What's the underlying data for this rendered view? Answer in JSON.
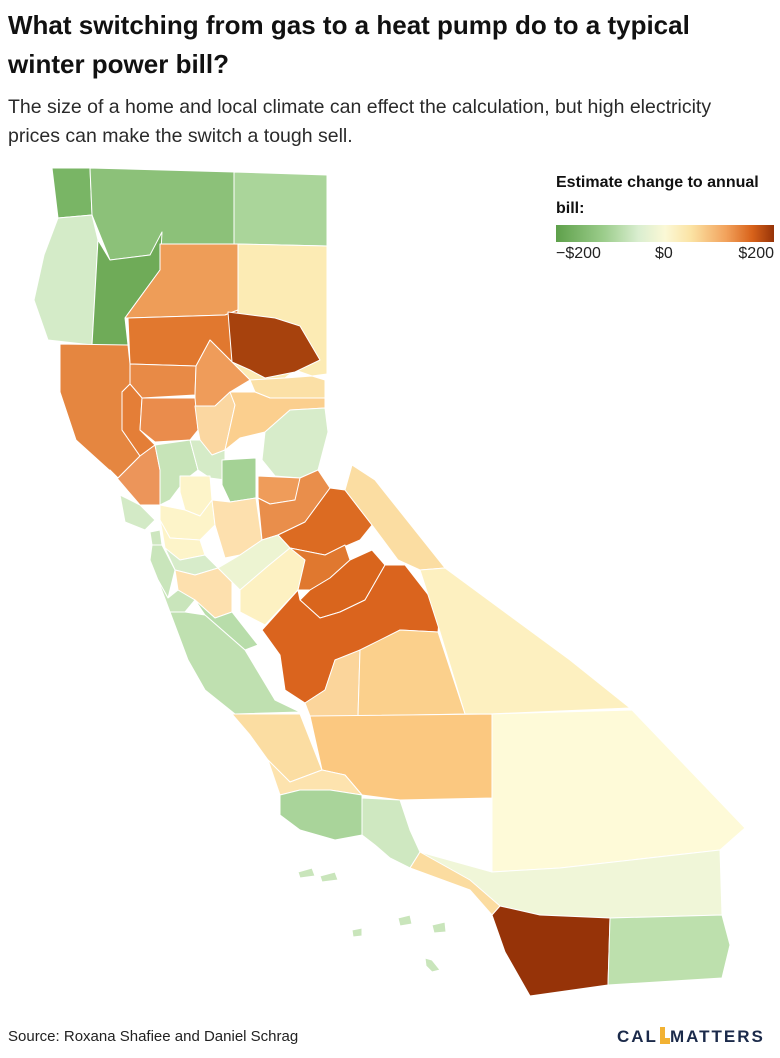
{
  "title": "What switching from gas to a heat pump do to a typical winter power bill?",
  "subtitle": "The size of a home and local climate can effect the calculation, but high electricity prices can make the switch a tough sell.",
  "legend": {
    "title": "Estimate change to annual bill:",
    "tick_min": "−$200",
    "tick_mid": "$0",
    "tick_max": "$200",
    "color_stops": [
      "#5ea04a",
      "#9ccd8c",
      "#daeed0",
      "#fbf8d6",
      "#fbe3a4",
      "#f2a25c",
      "#d8621a",
      "#963308"
    ]
  },
  "map": {
    "regions": [
      {
        "id": "del-norte",
        "color": "#79b565"
      },
      {
        "id": "siskiyou",
        "color": "#8cc179"
      },
      {
        "id": "modoc",
        "color": "#aad59a"
      },
      {
        "id": "humboldt",
        "color": "#d4ebc8"
      },
      {
        "id": "trinity",
        "color": "#6fab58"
      },
      {
        "id": "shasta",
        "color": "#ee9d58"
      },
      {
        "id": "lassen",
        "color": "#fcebb4"
      },
      {
        "id": "tehama",
        "color": "#e1782f"
      },
      {
        "id": "plumas",
        "color": "#a7420d"
      },
      {
        "id": "mendocino",
        "color": "#e58640"
      },
      {
        "id": "glenn",
        "color": "#e88a46"
      },
      {
        "id": "butte",
        "color": "#ef9c5a"
      },
      {
        "id": "sierra",
        "color": "#fbe0a6"
      },
      {
        "id": "lake",
        "color": "#e47e37"
      },
      {
        "id": "colusa",
        "color": "#ea8c4c"
      },
      {
        "id": "sutter-yuba",
        "color": "#fbd7a1"
      },
      {
        "id": "nevada-placer",
        "color": "#fbcf8e"
      },
      {
        "id": "el-dorado",
        "color": "#d7ecca"
      },
      {
        "id": "sonoma",
        "color": "#ec955a"
      },
      {
        "id": "napa",
        "color": "#c7e4b8"
      },
      {
        "id": "yolo",
        "color": "#d5ebc7"
      },
      {
        "id": "sacramento",
        "color": "#fdf4c9"
      },
      {
        "id": "amador",
        "color": "#a4d295"
      },
      {
        "id": "alpine",
        "color": "#ef9c5a"
      },
      {
        "id": "marin",
        "color": "#d3eac6"
      },
      {
        "id": "solano",
        "color": "#fdf4c9"
      },
      {
        "id": "san-joaquin",
        "color": "#fde0ae"
      },
      {
        "id": "calaveras",
        "color": "#e98e4b"
      },
      {
        "id": "tuolumne",
        "color": "#dc6b22"
      },
      {
        "id": "mono",
        "color": "#fbdda2"
      },
      {
        "id": "san-francisco",
        "color": "#cde6bf"
      },
      {
        "id": "contra-costa",
        "color": "#fdf4c9"
      },
      {
        "id": "alameda",
        "color": "#d7ecca"
      },
      {
        "id": "san-mateo",
        "color": "#c9e5bb"
      },
      {
        "id": "santa-clara",
        "color": "#fde0ae"
      },
      {
        "id": "stanislaus",
        "color": "#edf4d2"
      },
      {
        "id": "merced",
        "color": "#fdf1c2"
      },
      {
        "id": "mariposa",
        "color": "#e0782f"
      },
      {
        "id": "madera",
        "color": "#d9651d"
      },
      {
        "id": "fresno",
        "color": "#da641e"
      },
      {
        "id": "inyo",
        "color": "#fdf0c0"
      },
      {
        "id": "santa-cruz",
        "color": "#c9e5bb"
      },
      {
        "id": "san-benito",
        "color": "#b8ddaa"
      },
      {
        "id": "monterey",
        "color": "#bfe0b0"
      },
      {
        "id": "kings",
        "color": "#fbd59b"
      },
      {
        "id": "tulare",
        "color": "#fbd08c"
      },
      {
        "id": "san-luis-obispo",
        "color": "#fbdda2"
      },
      {
        "id": "kern",
        "color": "#fbc880"
      },
      {
        "id": "santa-barbara",
        "color": "#fde3ae"
      },
      {
        "id": "ventura",
        "color": "#a9d49a"
      },
      {
        "id": "los-angeles",
        "color": "#cfe8c1"
      },
      {
        "id": "san-bernardino",
        "color": "#fefad8"
      },
      {
        "id": "orange",
        "color": "#fbdca0"
      },
      {
        "id": "riverside",
        "color": "#f0f6d8"
      },
      {
        "id": "san-diego",
        "color": "#963308"
      },
      {
        "id": "imperial",
        "color": "#bde0ad"
      },
      {
        "id": "channel-islands",
        "color": "#c9e5bb"
      }
    ]
  },
  "source": "Source: Roxana Shafiee and Daniel Schrag",
  "logo": {
    "left": "CAL",
    "right": "MATTERS",
    "mark_color": "#f2b233"
  }
}
